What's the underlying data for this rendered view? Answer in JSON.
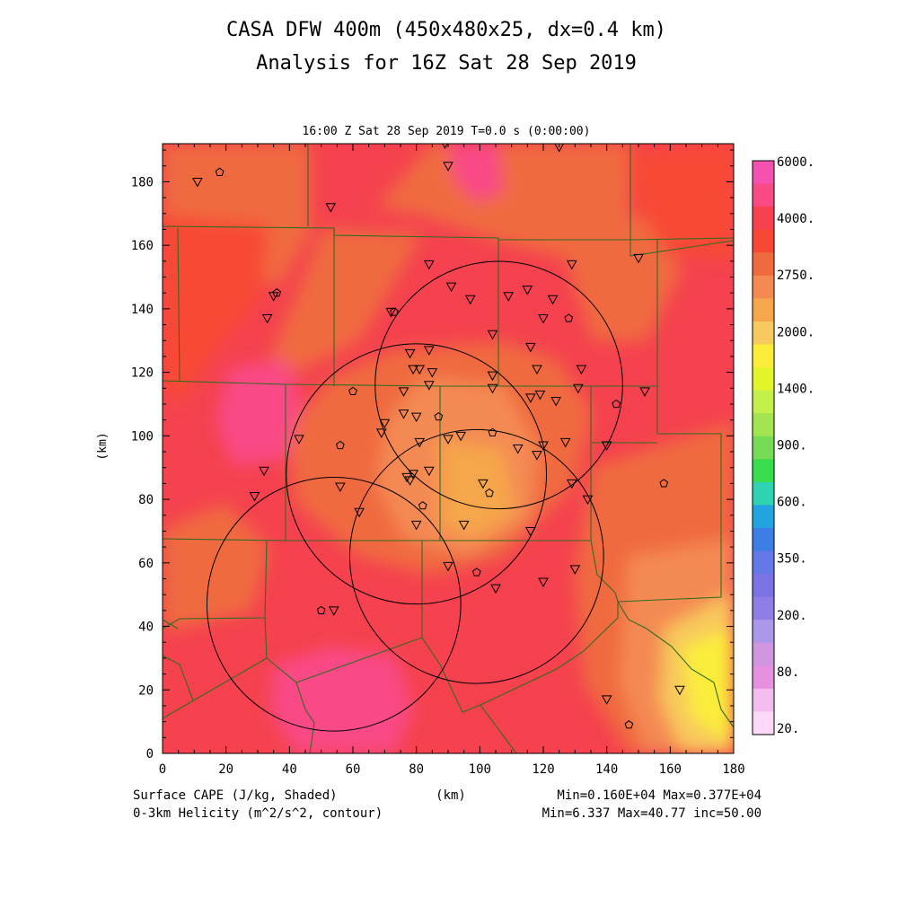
{
  "title_line1": "CASA DFW 400m (450x480x25, dx=0.4 km)",
  "title_line2": "Analysis for 16Z Sat 28 Sep 2019",
  "plot_header": "16:00 Z Sat 28 Sep 2019    T=0.0 s (0:00:00)",
  "footer": {
    "field1": "Surface CAPE (J/kg, Shaded)",
    "field2": "0-3km Helicity (m^2/s^2, contour)",
    "unit": "(km)",
    "stats1": "Min=0.160E+04 Max=0.377E+04",
    "stats2": "Min=6.337 Max=40.77 inc=50.00"
  },
  "chart_data": {
    "type": "heatmap",
    "xlabel": "(km)",
    "ylabel": "(km)",
    "xlim": [
      0,
      180
    ],
    "ylim": [
      0,
      192
    ],
    "x_ticks": [
      "0",
      "20",
      "40",
      "60",
      "80",
      "100",
      "120",
      "140",
      "160",
      "180"
    ],
    "y_ticks": [
      "0",
      "20",
      "40",
      "60",
      "80",
      "100",
      "120",
      "140",
      "160",
      "180"
    ],
    "colorbar": {
      "labels": [
        "6000.",
        "4000.",
        "2750.",
        "2000.",
        "1400.",
        "900.",
        "600.",
        "350.",
        "200.",
        "80.",
        "20."
      ],
      "colors": [
        "#f552b0",
        "#f94a86",
        "#f5424e",
        "#f84835",
        "#f06a40",
        "#f48a52",
        "#f6a64b",
        "#f8c95c",
        "#fbed3a",
        "#e2f528",
        "#c3f04a",
        "#a3e550",
        "#76dc55",
        "#38dc4c",
        "#2ed4b2",
        "#22a4e0",
        "#3c7ee6",
        "#6478e8",
        "#7b72e6",
        "#907ee6",
        "#ab98ea",
        "#d096e0",
        "#e690e0",
        "#f2bcee",
        "#fbd8f6"
      ]
    },
    "cape_min": 1600,
    "cape_max": 3770,
    "helicity": {
      "min": 6.337,
      "max": 40.77,
      "inc": 50.0
    },
    "radar_ranges_km": [
      {
        "center": [
          106,
          116
        ],
        "radius": 39
      },
      {
        "center": [
          80,
          88
        ],
        "radius": 41
      },
      {
        "center": [
          99,
          62
        ],
        "radius": 40
      },
      {
        "center": [
          54,
          47
        ],
        "radius": 40
      }
    ],
    "stations": [
      {
        "x": 11,
        "y": 180,
        "m": "v"
      },
      {
        "x": 18,
        "y": 183,
        "m": "o"
      },
      {
        "x": 53,
        "y": 172,
        "m": "v"
      },
      {
        "x": 89,
        "y": 192,
        "m": "v"
      },
      {
        "x": 90,
        "y": 185,
        "m": "v"
      },
      {
        "x": 125,
        "y": 191,
        "m": "v"
      },
      {
        "x": 150,
        "y": 156,
        "m": "v"
      },
      {
        "x": 129,
        "y": 154,
        "m": "v"
      },
      {
        "x": 84,
        "y": 154,
        "m": "v"
      },
      {
        "x": 35,
        "y": 144,
        "m": "v"
      },
      {
        "x": 36,
        "y": 145,
        "m": "o"
      },
      {
        "x": 33,
        "y": 137,
        "m": "v"
      },
      {
        "x": 72,
        "y": 139,
        "m": "v"
      },
      {
        "x": 73,
        "y": 139,
        "m": "o"
      },
      {
        "x": 91,
        "y": 147,
        "m": "v"
      },
      {
        "x": 97,
        "y": 143,
        "m": "v"
      },
      {
        "x": 109,
        "y": 144,
        "m": "v"
      },
      {
        "x": 115,
        "y": 146,
        "m": "v"
      },
      {
        "x": 123,
        "y": 143,
        "m": "v"
      },
      {
        "x": 120,
        "y": 137,
        "m": "v"
      },
      {
        "x": 128,
        "y": 137,
        "m": "o"
      },
      {
        "x": 104,
        "y": 132,
        "m": "v"
      },
      {
        "x": 116,
        "y": 128,
        "m": "v"
      },
      {
        "x": 84,
        "y": 127,
        "m": "v"
      },
      {
        "x": 78,
        "y": 126,
        "m": "v"
      },
      {
        "x": 79,
        "y": 121,
        "m": "v"
      },
      {
        "x": 81,
        "y": 121,
        "m": "v"
      },
      {
        "x": 85,
        "y": 120,
        "m": "v"
      },
      {
        "x": 84,
        "y": 116,
        "m": "v"
      },
      {
        "x": 104,
        "y": 119,
        "m": "v"
      },
      {
        "x": 104,
        "y": 115,
        "m": "v"
      },
      {
        "x": 118,
        "y": 121,
        "m": "v"
      },
      {
        "x": 119,
        "y": 113,
        "m": "v"
      },
      {
        "x": 116,
        "y": 112,
        "m": "v"
      },
      {
        "x": 124,
        "y": 111,
        "m": "v"
      },
      {
        "x": 131,
        "y": 115,
        "m": "v"
      },
      {
        "x": 132,
        "y": 121,
        "m": "v"
      },
      {
        "x": 152,
        "y": 114,
        "m": "v"
      },
      {
        "x": 143,
        "y": 110,
        "m": "o"
      },
      {
        "x": 60,
        "y": 114,
        "m": "o"
      },
      {
        "x": 76,
        "y": 114,
        "m": "v"
      },
      {
        "x": 76,
        "y": 107,
        "m": "v"
      },
      {
        "x": 80,
        "y": 106,
        "m": "v"
      },
      {
        "x": 87,
        "y": 106,
        "m": "o"
      },
      {
        "x": 70,
        "y": 104,
        "m": "v"
      },
      {
        "x": 69,
        "y": 101,
        "m": "v"
      },
      {
        "x": 43,
        "y": 99,
        "m": "v"
      },
      {
        "x": 56,
        "y": 97,
        "m": "o"
      },
      {
        "x": 81,
        "y": 98,
        "m": "v"
      },
      {
        "x": 90,
        "y": 99,
        "m": "v"
      },
      {
        "x": 94,
        "y": 100,
        "m": "v"
      },
      {
        "x": 104,
        "y": 101,
        "m": "o"
      },
      {
        "x": 112,
        "y": 96,
        "m": "v"
      },
      {
        "x": 118,
        "y": 94,
        "m": "v"
      },
      {
        "x": 120,
        "y": 97,
        "m": "v"
      },
      {
        "x": 127,
        "y": 98,
        "m": "v"
      },
      {
        "x": 140,
        "y": 97,
        "m": "v"
      },
      {
        "x": 32,
        "y": 89,
        "m": "v"
      },
      {
        "x": 29,
        "y": 81,
        "m": "v"
      },
      {
        "x": 56,
        "y": 84,
        "m": "v"
      },
      {
        "x": 78,
        "y": 86,
        "m": "v"
      },
      {
        "x": 77,
        "y": 87,
        "m": "v"
      },
      {
        "x": 79,
        "y": 88,
        "m": "v"
      },
      {
        "x": 84,
        "y": 89,
        "m": "v"
      },
      {
        "x": 101,
        "y": 85,
        "m": "v"
      },
      {
        "x": 103,
        "y": 82,
        "m": "o"
      },
      {
        "x": 82,
        "y": 78,
        "m": "o"
      },
      {
        "x": 62,
        "y": 76,
        "m": "v"
      },
      {
        "x": 80,
        "y": 72,
        "m": "v"
      },
      {
        "x": 95,
        "y": 72,
        "m": "v"
      },
      {
        "x": 116,
        "y": 70,
        "m": "v"
      },
      {
        "x": 129,
        "y": 85,
        "m": "v"
      },
      {
        "x": 134,
        "y": 80,
        "m": "v"
      },
      {
        "x": 158,
        "y": 85,
        "m": "o"
      },
      {
        "x": 90,
        "y": 59,
        "m": "v"
      },
      {
        "x": 99,
        "y": 57,
        "m": "o"
      },
      {
        "x": 105,
        "y": 52,
        "m": "v"
      },
      {
        "x": 120,
        "y": 54,
        "m": "v"
      },
      {
        "x": 130,
        "y": 58,
        "m": "v"
      },
      {
        "x": 50,
        "y": 45,
        "m": "o"
      },
      {
        "x": 54,
        "y": 45,
        "m": "v"
      },
      {
        "x": 140,
        "y": 17,
        "m": "v"
      },
      {
        "x": 163,
        "y": 20,
        "m": "v"
      },
      {
        "x": 147,
        "y": 9,
        "m": "o"
      }
    ]
  }
}
